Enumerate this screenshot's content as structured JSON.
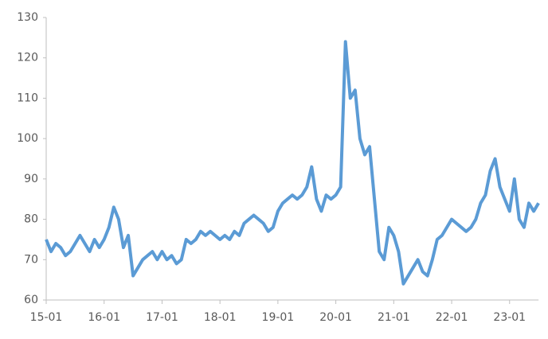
{
  "chart_data": {
    "type": "line",
    "x": [
      "15-01",
      "15-02",
      "15-03",
      "15-04",
      "15-05",
      "15-06",
      "15-07",
      "15-08",
      "15-09",
      "15-10",
      "15-11",
      "15-12",
      "16-01",
      "16-02",
      "16-03",
      "16-04",
      "16-05",
      "16-06",
      "16-07",
      "16-08",
      "16-09",
      "16-10",
      "16-11",
      "16-12",
      "17-01",
      "17-02",
      "17-03",
      "17-04",
      "17-05",
      "17-06",
      "17-07",
      "17-08",
      "17-09",
      "17-10",
      "17-11",
      "17-12",
      "18-01",
      "18-02",
      "18-03",
      "18-04",
      "18-05",
      "18-06",
      "18-07",
      "18-08",
      "18-09",
      "18-10",
      "18-11",
      "18-12",
      "19-01",
      "19-02",
      "19-03",
      "19-04",
      "19-05",
      "19-06",
      "19-07",
      "19-08",
      "19-09",
      "19-10",
      "19-11",
      "19-12",
      "20-01",
      "20-02",
      "20-03",
      "20-04",
      "20-05",
      "20-06",
      "20-07",
      "20-08",
      "20-09",
      "20-10",
      "20-11",
      "20-12",
      "21-01",
      "21-02",
      "21-03",
      "21-04",
      "21-05",
      "21-06",
      "21-07",
      "21-08",
      "21-09",
      "21-10",
      "21-11",
      "21-12",
      "22-01",
      "22-02",
      "22-03",
      "22-04",
      "22-05",
      "22-06",
      "22-07",
      "22-08",
      "22-09",
      "22-10",
      "22-11",
      "22-12",
      "23-01",
      "23-02",
      "23-03",
      "23-04",
      "23-05",
      "23-06",
      "23-07"
    ],
    "series": [
      {
        "color": "#5b9bd5",
        "values": [
          75,
          72,
          74,
          73,
          71,
          72,
          74,
          76,
          74,
          72,
          75,
          73,
          75,
          78,
          83,
          80,
          73,
          76,
          66,
          68,
          70,
          71,
          72,
          70,
          72,
          70,
          71,
          69,
          70,
          75,
          74,
          75,
          77,
          76,
          77,
          76,
          75,
          76,
          75,
          77,
          76,
          79,
          80,
          81,
          80,
          79,
          77,
          78,
          82,
          84,
          85,
          86,
          85,
          86,
          88,
          93,
          85,
          82,
          86,
          85,
          86,
          88,
          124,
          110,
          112,
          100,
          96,
          98,
          85,
          72,
          70,
          78,
          76,
          72,
          64,
          66,
          68,
          70,
          67,
          66,
          70,
          75,
          76,
          78,
          80,
          79,
          78,
          77,
          78,
          80,
          84,
          86,
          92,
          95,
          88,
          85,
          82,
          90,
          80,
          78,
          84,
          82,
          84
        ]
      }
    ],
    "ylim": [
      60,
      130
    ],
    "yticks": [
      60,
      70,
      80,
      90,
      100,
      110,
      120,
      130
    ],
    "xticks": [
      "15-01",
      "16-01",
      "17-01",
      "18-01",
      "19-01",
      "20-01",
      "21-01",
      "22-01",
      "23-01"
    ]
  }
}
